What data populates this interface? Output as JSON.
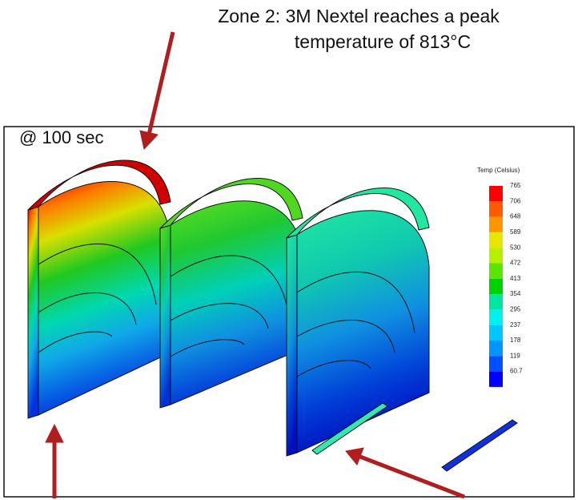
{
  "annotation": {
    "lines": [
      "Zone 2: 3M Nextel reaches a peak",
      "temperature of 813°C"
    ]
  },
  "time_label": "@ 100 sec",
  "legend": {
    "title": "Temp (Celsius)",
    "labels": [
      "765",
      "706",
      "648",
      "589",
      "530",
      "472",
      "413",
      "354",
      "295",
      "237",
      "178",
      "119",
      "60.7"
    ],
    "colors": [
      "#ff0000",
      "#ff5a00",
      "#ff9600",
      "#e6e600",
      "#b4f000",
      "#5ae600",
      "#00d200",
      "#00e6a0",
      "#00f0f0",
      "#00c8ff",
      "#0096ff",
      "#0050ff",
      "#0000ff"
    ]
  }
}
